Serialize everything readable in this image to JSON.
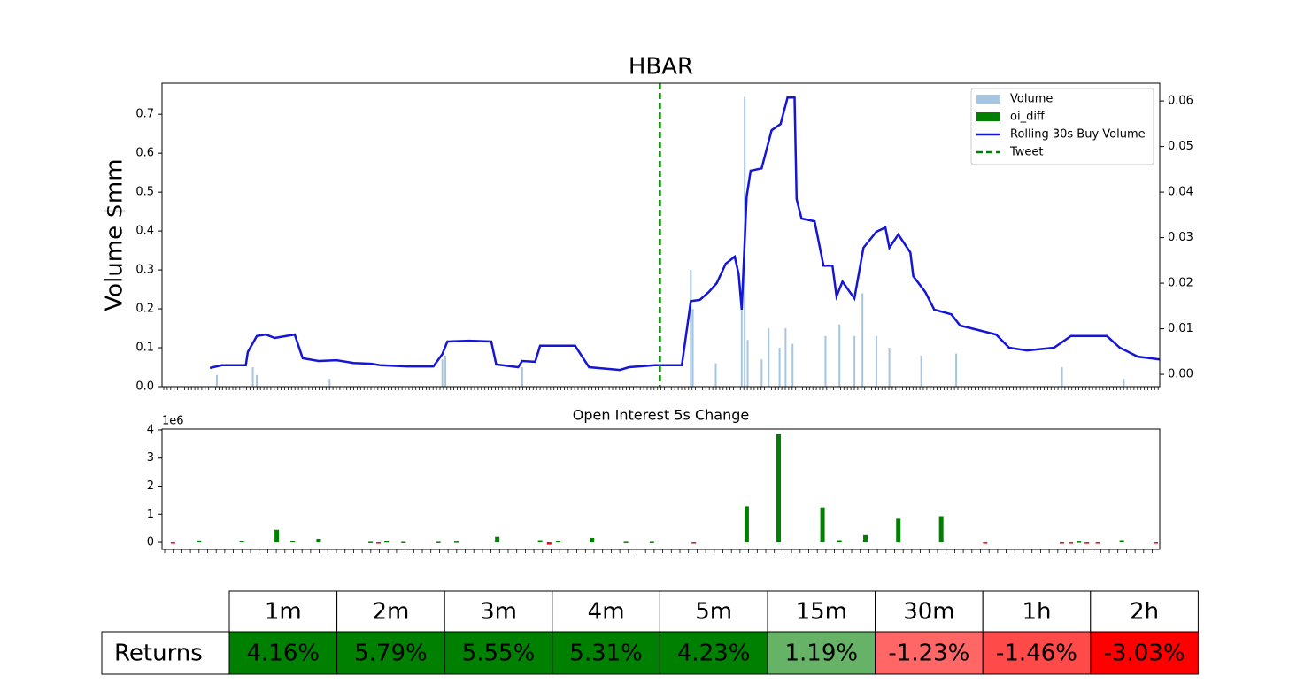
{
  "chart_data": [
    {
      "type": "combo",
      "title": "HBAR",
      "ylabel": "Volume $mm",
      "xlim": [
        0,
        100
      ],
      "ylim": [
        0,
        0.78
      ],
      "yticks": [
        {
          "value": 0,
          "label": "0.0"
        },
        0.1,
        0.2,
        0.3,
        0.4,
        0.5,
        0.6,
        0.7
      ],
      "y2lim": [
        -0.0027,
        0.0639
      ],
      "y2ticks": [
        {
          "value": 0,
          "label": "0.00"
        },
        0.01,
        0.02,
        0.03,
        0.04,
        0.05,
        0.06
      ],
      "legend": "upper right",
      "series": [
        {
          "name": "Volume",
          "kind": "bar",
          "color": "#a6c5e0",
          "x": [
            5.5,
            9.1,
            9.5,
            16.8,
            28.1,
            28.4,
            36.1,
            53.0,
            53.2,
            55.5,
            58.1,
            58.4,
            58.7,
            60.1,
            60.8,
            61.9,
            62.5,
            63.2,
            66.5,
            67.9,
            69.4,
            70.2,
            71.6,
            72.9,
            76.1,
            79.6,
            90.2,
            96.4
          ],
          "values": [
            0.03,
            0.05,
            0.03,
            0.02,
            0.07,
            0.08,
            0.05,
            0.3,
            0.2,
            0.06,
            0.2,
            0.745,
            0.12,
            0.07,
            0.15,
            0.1,
            0.15,
            0.11,
            0.13,
            0.16,
            0.13,
            0.24,
            0.13,
            0.1,
            0.08,
            0.085,
            0.05,
            0.02
          ]
        },
        {
          "name": "oi_diff",
          "kind": "bar",
          "color": "#008000"
        },
        {
          "name": "Rolling 30s Buy Volume",
          "kind": "line",
          "color": "#1515d6",
          "x": [
            4.8,
            6.0,
            8.4,
            8.6,
            9.5,
            10.4,
            11.3,
            13.3,
            14.1,
            15.7,
            17.5,
            19.2,
            21.0,
            21.9,
            24.6,
            27.2,
            28.1,
            28.6,
            30.8,
            33.0,
            33.5,
            35.7,
            36.1,
            37.4,
            37.9,
            41.4,
            42.8,
            45.9,
            46.8,
            49.4,
            52.1,
            53.0,
            53.9,
            54.8,
            55.6,
            56.5,
            57.4,
            57.8,
            58.1,
            58.6,
            59.0,
            60.1,
            61.1,
            62.0,
            62.7,
            63.4,
            63.6,
            64.1,
            65.4,
            66.3,
            67.2,
            67.6,
            68.2,
            69.4,
            70.3,
            71.6,
            72.5,
            72.9,
            73.8,
            75.0,
            75.3,
            76.5,
            77.4,
            79.1,
            80.0,
            81.4,
            83.6,
            84.9,
            86.7,
            89.4,
            91.1,
            94.7,
            96.0,
            97.8,
            100
          ],
          "values": [
            0.048,
            0.055,
            0.055,
            0.089,
            0.13,
            0.134,
            0.125,
            0.134,
            0.073,
            0.066,
            0.068,
            0.061,
            0.059,
            0.055,
            0.052,
            0.052,
            0.084,
            0.116,
            0.118,
            0.116,
            0.057,
            0.05,
            0.066,
            0.064,
            0.105,
            0.105,
            0.05,
            0.043,
            0.05,
            0.055,
            0.055,
            0.22,
            0.223,
            0.243,
            0.266,
            0.316,
            0.334,
            0.289,
            0.198,
            0.489,
            0.555,
            0.561,
            0.659,
            0.675,
            0.743,
            0.743,
            0.482,
            0.432,
            0.425,
            0.311,
            0.311,
            0.232,
            0.27,
            0.227,
            0.357,
            0.398,
            0.409,
            0.357,
            0.391,
            0.345,
            0.284,
            0.243,
            0.198,
            0.186,
            0.157,
            0.148,
            0.134,
            0.1,
            0.093,
            0.1,
            0.13,
            0.13,
            0.1,
            0.077,
            0.07
          ]
        },
        {
          "name": "Tweet",
          "kind": "vline",
          "color": "#008000",
          "x": [
            49.9
          ]
        }
      ]
    },
    {
      "type": "bar",
      "title": "Open Interest 5s Change",
      "y_offset_label": "1e6",
      "xlim": [
        0,
        100
      ],
      "ylim": [
        -0.25,
        4.03
      ],
      "yticks": [
        0,
        1,
        2,
        3,
        4
      ],
      "positive_color": "#008000",
      "negative_color": "#ff0000",
      "x": [
        1.1,
        3.7,
        8.0,
        11.5,
        13.1,
        15.7,
        20.9,
        21.7,
        22.5,
        24.2,
        27.7,
        29.5,
        33.6,
        37.9,
        38.8,
        39.7,
        43.1,
        46.5,
        49.1,
        53.3,
        58.6,
        61.8,
        66.2,
        67.9,
        70.5,
        73.8,
        78.1,
        82.5,
        90.2,
        91.1,
        91.9,
        92.7,
        93.8,
        96.2,
        99.6
      ],
      "values": [
        -0.03,
        0.07,
        0.05,
        0.45,
        0.05,
        0.13,
        0.02,
        -0.03,
        0.04,
        0.02,
        0.02,
        0.03,
        0.2,
        0.08,
        -0.08,
        0.05,
        0.16,
        0.02,
        0.02,
        -0.04,
        1.28,
        3.85,
        1.24,
        0.08,
        0.26,
        0.84,
        0.93,
        -0.03,
        -0.04,
        -0.04,
        0.03,
        -0.05,
        -0.04,
        0.08,
        -0.03
      ]
    }
  ],
  "table": {
    "row_label": "Returns",
    "columns": [
      "1m",
      "2m",
      "3m",
      "4m",
      "5m",
      "15m",
      "30m",
      "1h",
      "2h"
    ],
    "values": [
      "4.16%",
      "5.79%",
      "5.55%",
      "5.31%",
      "4.23%",
      "1.19%",
      "-1.23%",
      "-1.46%",
      "-3.03%"
    ],
    "colors": [
      "#008000",
      "#008000",
      "#008000",
      "#008000",
      "#008000",
      "#66b266",
      "#ff6666",
      "#ff4a4a",
      "#ff0000"
    ]
  }
}
